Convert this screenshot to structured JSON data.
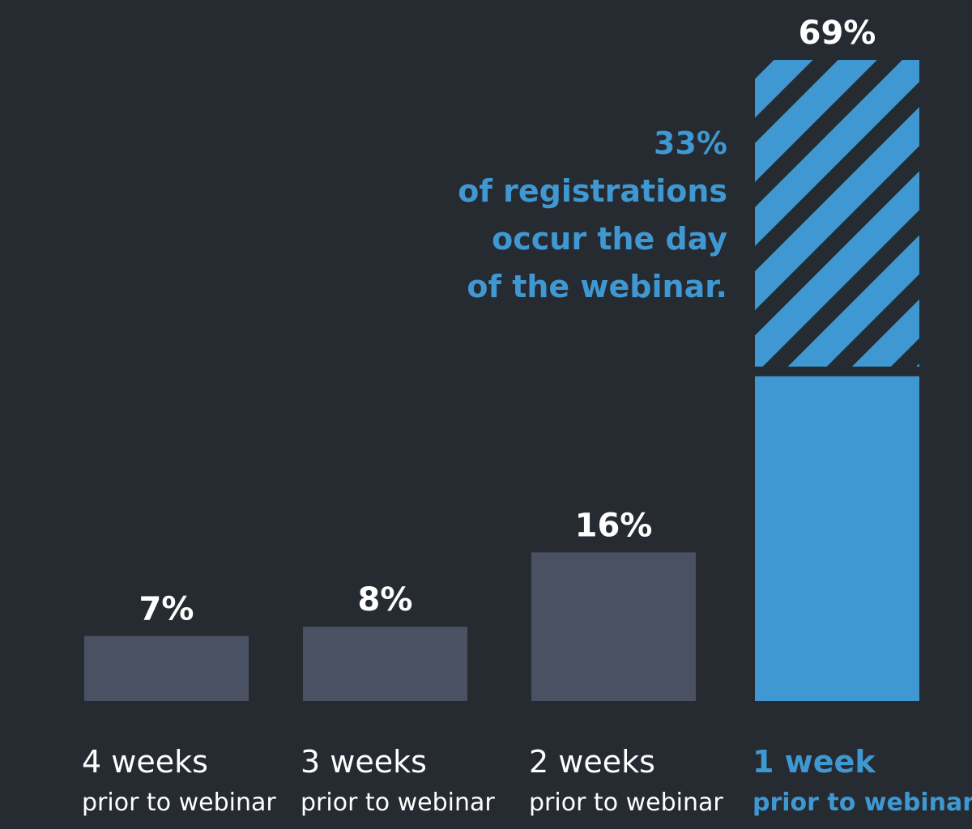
{
  "chart_data": {
    "type": "bar",
    "categories": [
      {
        "line1": "4 weeks",
        "line2": "prior to webinar"
      },
      {
        "line1": "3 weeks",
        "line2": "prior to webinar"
      },
      {
        "line1": "2 weeks",
        "line2": "prior to webinar"
      },
      {
        "line1": "1 week",
        "line2": "prior to webinar"
      }
    ],
    "values": [
      7,
      8,
      16,
      69
    ],
    "value_labels": [
      "7%",
      "8%",
      "16%",
      "69%"
    ],
    "highlight_index": 3,
    "highlight_segment": {
      "value": 33,
      "pattern": "diagonal-stripes"
    },
    "annotation": {
      "lines": [
        "33%",
        "of registrations",
        "occur the day",
        "of the webinar."
      ]
    },
    "ylim": [
      0,
      69
    ],
    "grid": false,
    "colors": {
      "background": "#262a31",
      "bar": "#4a5163",
      "highlight": "#3f98d1",
      "label": "#ffffff"
    }
  }
}
